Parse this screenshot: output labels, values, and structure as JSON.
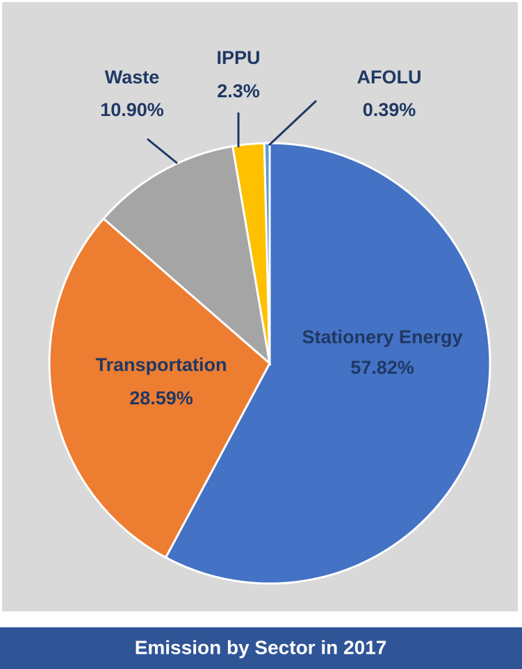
{
  "chart_data": {
    "type": "pie",
    "title": "Emission by Sector in 2017",
    "categories": [
      "Stationery Energy",
      "Transportation",
      "Waste",
      "IPPU",
      "AFOLU"
    ],
    "values": [
      57.82,
      28.59,
      10.9,
      2.3,
      0.39
    ],
    "value_labels": [
      "57.82%",
      "28.59%",
      "10.90%",
      "2.3%",
      "0.39%"
    ],
    "colors": [
      "#4472c4",
      "#ed7d31",
      "#a5a5a5",
      "#ffc000",
      "#5b9bd5"
    ]
  }
}
